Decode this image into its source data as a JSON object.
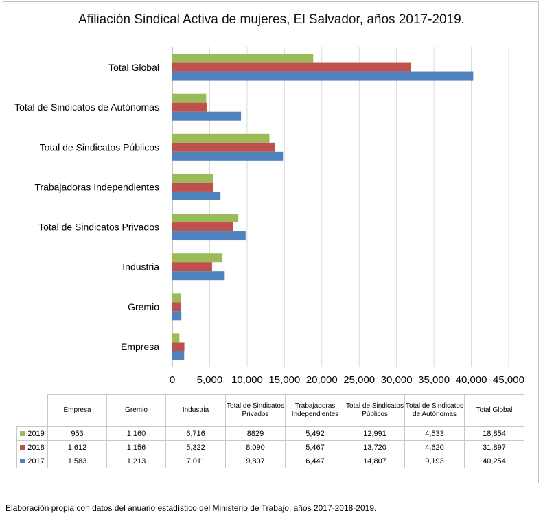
{
  "chart_data": {
    "type": "bar",
    "orientation": "horizontal",
    "title": "Afiliación Sindical Activa de mujeres, El Salvador, años 2017-2019.",
    "categories": [
      "Total Global",
      "Total de Sindicatos de Autónomas",
      "Total de Sindicatos Públicos",
      "Trabajadoras Independientes",
      "Total de Sindicatos Privados",
      "Industria",
      "Gremio",
      "Empresa"
    ],
    "xlim": [
      0,
      45000
    ],
    "xticks": [
      "0",
      "5,000",
      "10,000",
      "15,000",
      "20,000",
      "25,000",
      "30,000",
      "35,000",
      "40,000",
      "45,000"
    ],
    "grid": true,
    "series": [
      {
        "name": "2019",
        "color": "#9bbb59",
        "values": [
          18854,
          4533,
          12991,
          5492,
          8829,
          6716,
          1160,
          953
        ]
      },
      {
        "name": "2018",
        "color": "#c0504d",
        "values": [
          31897,
          4620,
          13720,
          5467,
          8090,
          5322,
          1156,
          1612
        ]
      },
      {
        "name": "2017",
        "color": "#4f81bd",
        "values": [
          40254,
          9193,
          14807,
          6447,
          9807,
          7011,
          1213,
          1583
        ]
      }
    ]
  },
  "table": {
    "columns": [
      "Empresa",
      "Gremio",
      "Industria",
      "Total de Sindicatos Privados",
      "Trabajadoras Independientes",
      "Total de Sindicatos Públicos",
      "Total de Sindicatos de Autónomas",
      "Total Global"
    ],
    "rows": [
      {
        "label": "2019",
        "color": "#9bbb59",
        "cells": [
          "953",
          "1,160",
          "6,716",
          "8829",
          "5,492",
          "12,991",
          "4,533",
          "18,854"
        ]
      },
      {
        "label": "2018",
        "color": "#c0504d",
        "cells": [
          "1,612",
          "1,156",
          "5,322",
          "8,090",
          "5,467",
          "13,720",
          "4,620",
          "31,897"
        ]
      },
      {
        "label": "2017",
        "color": "#4f81bd",
        "cells": [
          "1,583",
          "1,213",
          "7,011",
          "9,807",
          "6,447",
          "14,807",
          "9,193",
          "40,254"
        ]
      }
    ]
  },
  "source_note": "Elaboración propia con datos del anuario estadístico del Ministerio de Trabajo, años 2017-2018-2019."
}
